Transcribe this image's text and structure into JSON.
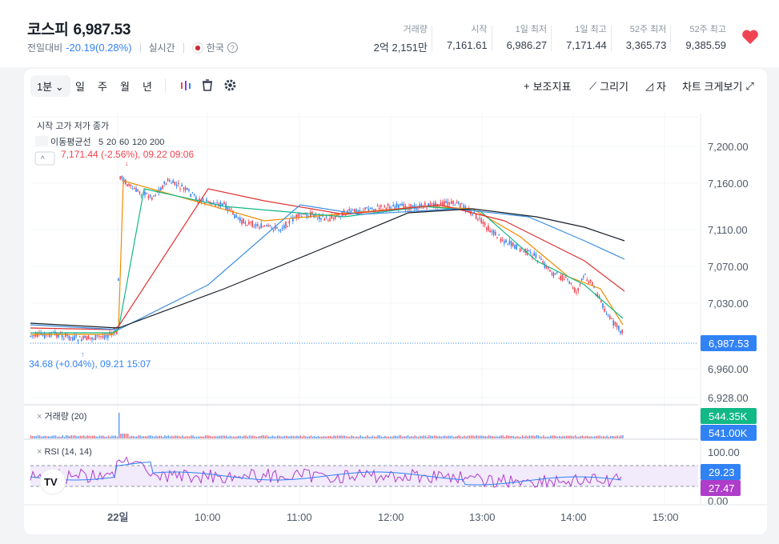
{
  "header": {
    "name": "코스피",
    "price": "6,987.53",
    "change_label": "전일대비",
    "change": "-20.19(0.28%)",
    "realtime": "실시간",
    "country": "한국",
    "help": "?"
  },
  "stats": [
    {
      "label": "거래량",
      "value": "2억 2,151만"
    },
    {
      "label": "시작",
      "value": "7,161.61"
    },
    {
      "label": "1일 최저",
      "value": "6,986.27"
    },
    {
      "label": "1일 최고",
      "value": "7,171.44"
    },
    {
      "label": "52주 최저",
      "value": "3,365.73"
    },
    {
      "label": "52주 최고",
      "value": "9,385.59"
    }
  ],
  "toolbar": {
    "interval": "1분",
    "timeframes": [
      "일",
      "주",
      "월",
      "년"
    ],
    "indicator": "보조지표",
    "draw": "그리기",
    "ruler": "자",
    "chart_size": "차트 크게보기"
  },
  "legend": {
    "ohlc": "시작 고가 저가 종가",
    "ma_label": "이동평균선",
    "ma_periods": [
      {
        "p": "5",
        "color": "#f08c00"
      },
      {
        "p": "20",
        "color": "#12b886"
      },
      {
        "p": "60",
        "color": "#e03131"
      },
      {
        "p": "120",
        "color": "#3b8fe0"
      },
      {
        "p": "200",
        "color": "#191f28"
      }
    ],
    "high_marker": "7,171.44 (-2.56%), 09.22 09:06",
    "low_marker": "34.68 (+0.04%), 09.21 15:07",
    "volume": "거래량 (20)",
    "rsi": "RSI (14, 14)"
  },
  "price_axis": [
    "7,200.00",
    "7,160.00",
    "7,110.00",
    "7,070.00",
    "7,030.00",
    "6,960.00",
    "6,928.00"
  ],
  "current_price_tag": "6,987.53",
  "volume_tags": [
    "544.35K",
    "541.00K"
  ],
  "rsi_axis": [
    "100.00",
    "0.00"
  ],
  "rsi_tags": [
    "29.23",
    "27.47"
  ],
  "time_axis": [
    "22일",
    "10:00",
    "11:00",
    "12:00",
    "13:00",
    "14:00",
    "15:00"
  ],
  "colors": {
    "up": "#f04452",
    "down": "#3182f6",
    "accent": "#3182f6"
  }
}
